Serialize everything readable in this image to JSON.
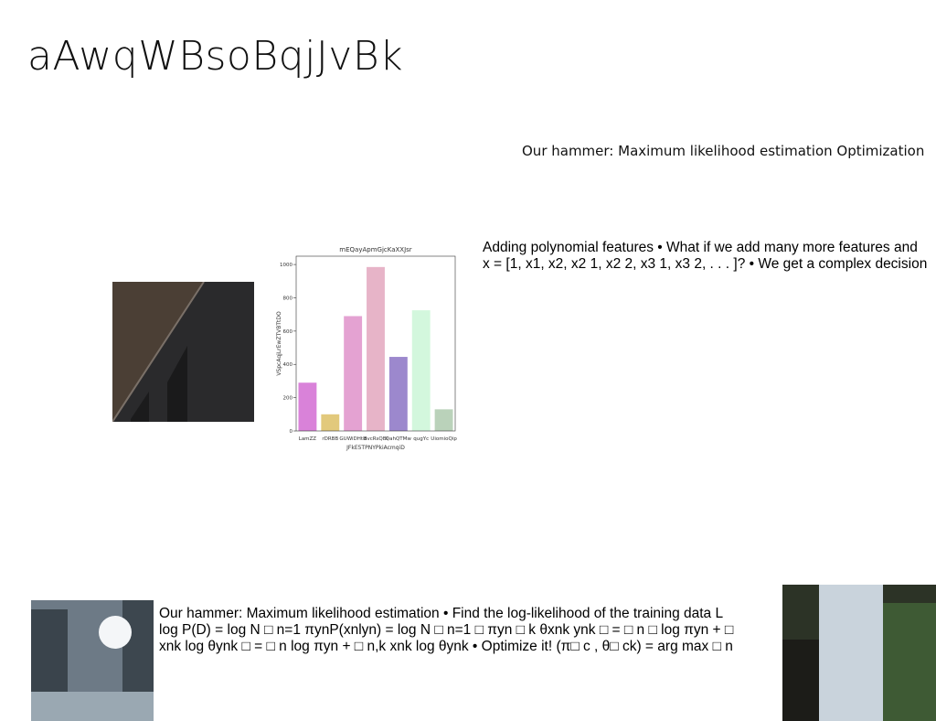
{
  "slide": {
    "title": "aAwqWBsoBqjJvBk",
    "subtitle": "Our hammer: Maximum likelihood estimation Optimization",
    "block1": [
      "Adding polynomial features • What if we add many more features and",
      "x = [1, x1, x2, x2 1, x2 2, x3 1, x3 2, . . . ]? • We get a complex decision"
    ],
    "block2": [
      "Our hammer: Maximum likelihood estimation • Find the log-likelihood of the training data L",
      "log P(D) = log N □ n=1 πynP(xnlyn) = log N □ n=1 □ πyn □ k θxnk ynk □ = □ n □ log πyn + □",
      "xnk log θynk □ = □ n log πyn + □ n,k xnk log θynk • Optimize it! (π□ c , θ□ ck) = arg max □ n"
    ]
  },
  "chart": {
    "type": "bar",
    "title": "mEQayApmGjcKaXXJsr",
    "x_label": "JFkE5TPNYPkiAcmqiD",
    "y_label": "VSpcAqjLrEwZTVBTtDO",
    "categories": [
      "LamZZ",
      "rDRBB",
      "GUWiDHtB",
      "dvcRsQBl",
      "QahQTMw",
      "qugYc",
      "UiomioQip"
    ],
    "values": [
      290,
      100,
      690,
      985,
      445,
      725,
      130
    ],
    "colors": [
      "#d982d9",
      "#e2c97c",
      "#e4a2d2",
      "#e7b4c8",
      "#9c88cd",
      "#d3f7dd",
      "#bad2ba"
    ],
    "ylim": [
      0,
      1050
    ],
    "yticks": [
      0,
      200,
      400,
      600,
      800,
      1000
    ]
  }
}
